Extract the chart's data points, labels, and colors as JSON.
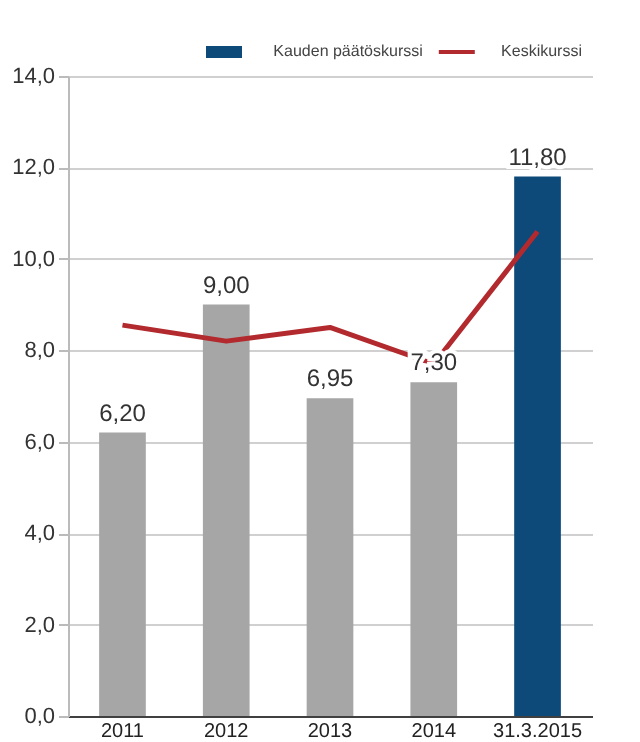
{
  "chart_data": {
    "type": "bar",
    "categories": [
      "2011",
      "2012",
      "2013",
      "2014",
      "31.3.2015"
    ],
    "series": [
      {
        "name": "Kauden päätöskurssi",
        "color": "#0d4a7a",
        "colors": [
          "#a6a6a6",
          "#a6a6a6",
          "#a6a6a6",
          "#a6a6a6",
          "#0d4a7a"
        ],
        "values": [
          6.2,
          9.0,
          6.95,
          7.3,
          11.8
        ],
        "value_labels": [
          "6,20",
          "9,00",
          "6,95",
          "7,30",
          "11,80"
        ]
      },
      {
        "name": "Keskikurssi",
        "type": "line",
        "color": "#b22a2e",
        "values": [
          8.55,
          8.2,
          8.5,
          7.7,
          10.6
        ]
      }
    ],
    "ylim": [
      0,
      14
    ],
    "yticks": [
      {
        "value": 0,
        "label": "0,0"
      },
      {
        "value": 2,
        "label": "2,0"
      },
      {
        "value": 4,
        "label": "4,0"
      },
      {
        "value": 6,
        "label": "6,0"
      },
      {
        "value": 8,
        "label": "8,0"
      },
      {
        "value": 10,
        "label": "10,0"
      },
      {
        "value": 12,
        "label": "12,0"
      },
      {
        "value": 14,
        "label": "14,0"
      }
    ],
    "grid": "y",
    "legend": "top right",
    "line_style": "solid",
    "marker": "none"
  }
}
